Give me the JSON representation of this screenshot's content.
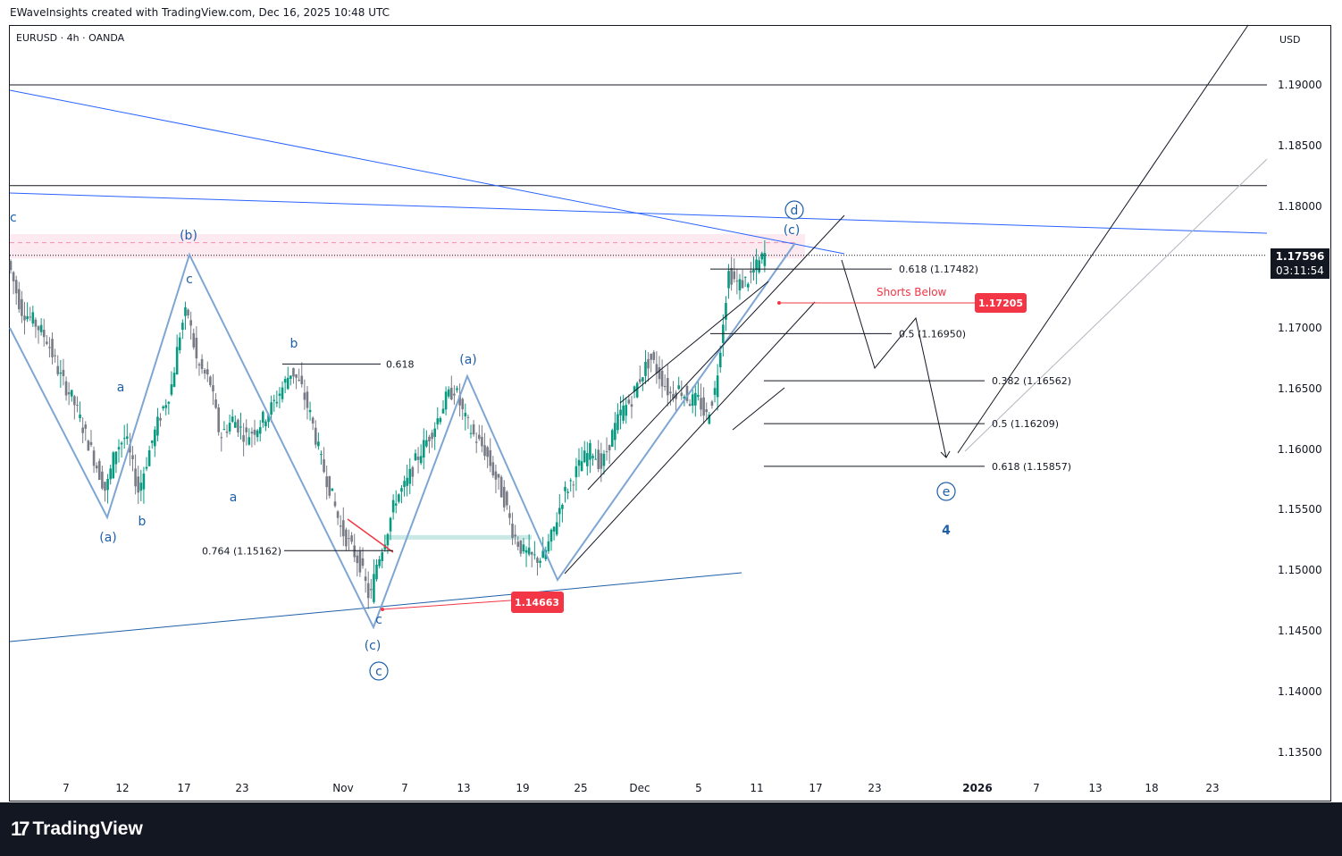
{
  "header": {
    "attribution": "EWaveInsights created with TradingView.com, Dec 16, 2025 10:48 UTC"
  },
  "chart": {
    "symbol_line": "EURUSD · 4h · OANDA",
    "currency": "USD",
    "last_price": "1.17596",
    "countdown": "03:11:54"
  },
  "footer": {
    "brand": "TradingView"
  },
  "colors": {
    "up": "#089981",
    "down": "#787b86",
    "wave": "#7ea6d3",
    "trend": "#2962ff",
    "label": "#1e5fa8",
    "red": "#f23645",
    "zone": "#fce4ec"
  },
  "chart_data": {
    "type": "candlestick",
    "x_ticks": [
      "7",
      "12",
      "17",
      "23",
      "Nov",
      "7",
      "13",
      "19",
      "25",
      "Dec",
      "5",
      "11",
      "17",
      "23",
      "2026",
      "7",
      "13",
      "18",
      "23"
    ],
    "y_ticks": [
      "1.19000",
      "1.18500",
      "1.18000",
      "1.17500",
      "1.17000",
      "1.16500",
      "1.16000",
      "1.15500",
      "1.15000",
      "1.14500",
      "1.14000",
      "1.13500"
    ],
    "ylim": [
      1.132,
      1.196
    ],
    "price_path": [
      {
        "t": 0,
        "p": 1.1755
      },
      {
        "t": 4,
        "p": 1.1715
      },
      {
        "t": 8,
        "p": 1.1705
      },
      {
        "t": 12,
        "p": 1.169
      },
      {
        "t": 16,
        "p": 1.166
      },
      {
        "t": 20,
        "p": 1.164
      },
      {
        "t": 24,
        "p": 1.161
      },
      {
        "t": 28,
        "p": 1.158
      },
      {
        "t": 30,
        "p": 1.1565
      },
      {
        "t": 33,
        "p": 1.16
      },
      {
        "t": 36,
        "p": 1.161
      },
      {
        "t": 40,
        "p": 1.1565
      },
      {
        "t": 44,
        "p": 1.1605
      },
      {
        "t": 47,
        "p": 1.163
      },
      {
        "t": 50,
        "p": 1.165
      },
      {
        "t": 53,
        "p": 1.17
      },
      {
        "t": 55,
        "p": 1.1715
      },
      {
        "t": 58,
        "p": 1.167
      },
      {
        "t": 62,
        "p": 1.1655
      },
      {
        "t": 65,
        "p": 1.161
      },
      {
        "t": 69,
        "p": 1.1625
      },
      {
        "t": 73,
        "p": 1.161
      },
      {
        "t": 77,
        "p": 1.162
      },
      {
        "t": 81,
        "p": 1.1635
      },
      {
        "t": 84,
        "p": 1.165
      },
      {
        "t": 87,
        "p": 1.1665
      },
      {
        "t": 90,
        "p": 1.165
      },
      {
        "t": 93,
        "p": 1.1625
      },
      {
        "t": 96,
        "p": 1.159
      },
      {
        "t": 99,
        "p": 1.1565
      },
      {
        "t": 102,
        "p": 1.1535
      },
      {
        "t": 105,
        "p": 1.152
      },
      {
        "t": 108,
        "p": 1.1505
      },
      {
        "t": 111,
        "p": 1.1475
      },
      {
        "t": 113,
        "p": 1.1505
      },
      {
        "t": 116,
        "p": 1.153
      },
      {
        "t": 119,
        "p": 1.156
      },
      {
        "t": 122,
        "p": 1.157
      },
      {
        "t": 125,
        "p": 1.159
      },
      {
        "t": 128,
        "p": 1.1605
      },
      {
        "t": 131,
        "p": 1.162
      },
      {
        "t": 134,
        "p": 1.164
      },
      {
        "t": 137,
        "p": 1.165
      },
      {
        "t": 140,
        "p": 1.1625
      },
      {
        "t": 143,
        "p": 1.161
      },
      {
        "t": 146,
        "p": 1.16
      },
      {
        "t": 149,
        "p": 1.158
      },
      {
        "t": 152,
        "p": 1.156
      },
      {
        "t": 155,
        "p": 1.153
      },
      {
        "t": 158,
        "p": 1.1515
      },
      {
        "t": 161,
        "p": 1.151
      },
      {
        "t": 164,
        "p": 1.151
      },
      {
        "t": 167,
        "p": 1.153
      },
      {
        "t": 170,
        "p": 1.156
      },
      {
        "t": 173,
        "p": 1.1575
      },
      {
        "t": 176,
        "p": 1.159
      },
      {
        "t": 179,
        "p": 1.16
      },
      {
        "t": 182,
        "p": 1.1585
      },
      {
        "t": 185,
        "p": 1.161
      },
      {
        "t": 188,
        "p": 1.163
      },
      {
        "t": 191,
        "p": 1.164
      },
      {
        "t": 194,
        "p": 1.166
      },
      {
        "t": 197,
        "p": 1.1675
      },
      {
        "t": 200,
        "p": 1.166
      },
      {
        "t": 203,
        "p": 1.1645
      },
      {
        "t": 206,
        "p": 1.165
      },
      {
        "t": 209,
        "p": 1.164
      },
      {
        "t": 212,
        "p": 1.164
      },
      {
        "t": 214,
        "p": 1.1625
      },
      {
        "t": 217,
        "p": 1.165
      },
      {
        "t": 219,
        "p": 1.17
      },
      {
        "t": 221,
        "p": 1.1745
      },
      {
        "t": 224,
        "p": 1.1735
      },
      {
        "t": 227,
        "p": 1.174
      },
      {
        "t": 230,
        "p": 1.1752
      },
      {
        "t": 232,
        "p": 1.176
      }
    ],
    "horizontal_levels": [
      1.19,
      1.1817
    ],
    "resistance_zone": [
      1.1757,
      1.1777
    ],
    "wave_labels": [
      "(a)",
      "b",
      "a",
      "(b)",
      "c",
      "a",
      "b",
      "c",
      "(c)",
      "(a)",
      "(c)",
      "4"
    ],
    "circled_labels": [
      "c",
      "d",
      "e"
    ],
    "fib_levels": [
      {
        "label": "0.618",
        "price": 1.167
      },
      {
        "label": "0.764 (1.15162)",
        "price": 1.15162
      },
      {
        "label": "0.618 (1.17482)",
        "price": 1.17482
      },
      {
        "label": "0.5 (1.16950)",
        "price": 1.1695
      },
      {
        "label": "0.382 (1.16562)",
        "price": 1.16562
      },
      {
        "label": "0.5 (1.16209)",
        "price": 1.16209
      },
      {
        "label": "0.618 (1.15857)",
        "price": 1.15857
      }
    ],
    "annotations": {
      "shorts_below": "Shorts Below",
      "shorts_price": "1.17205",
      "low_price": "1.14663"
    }
  }
}
